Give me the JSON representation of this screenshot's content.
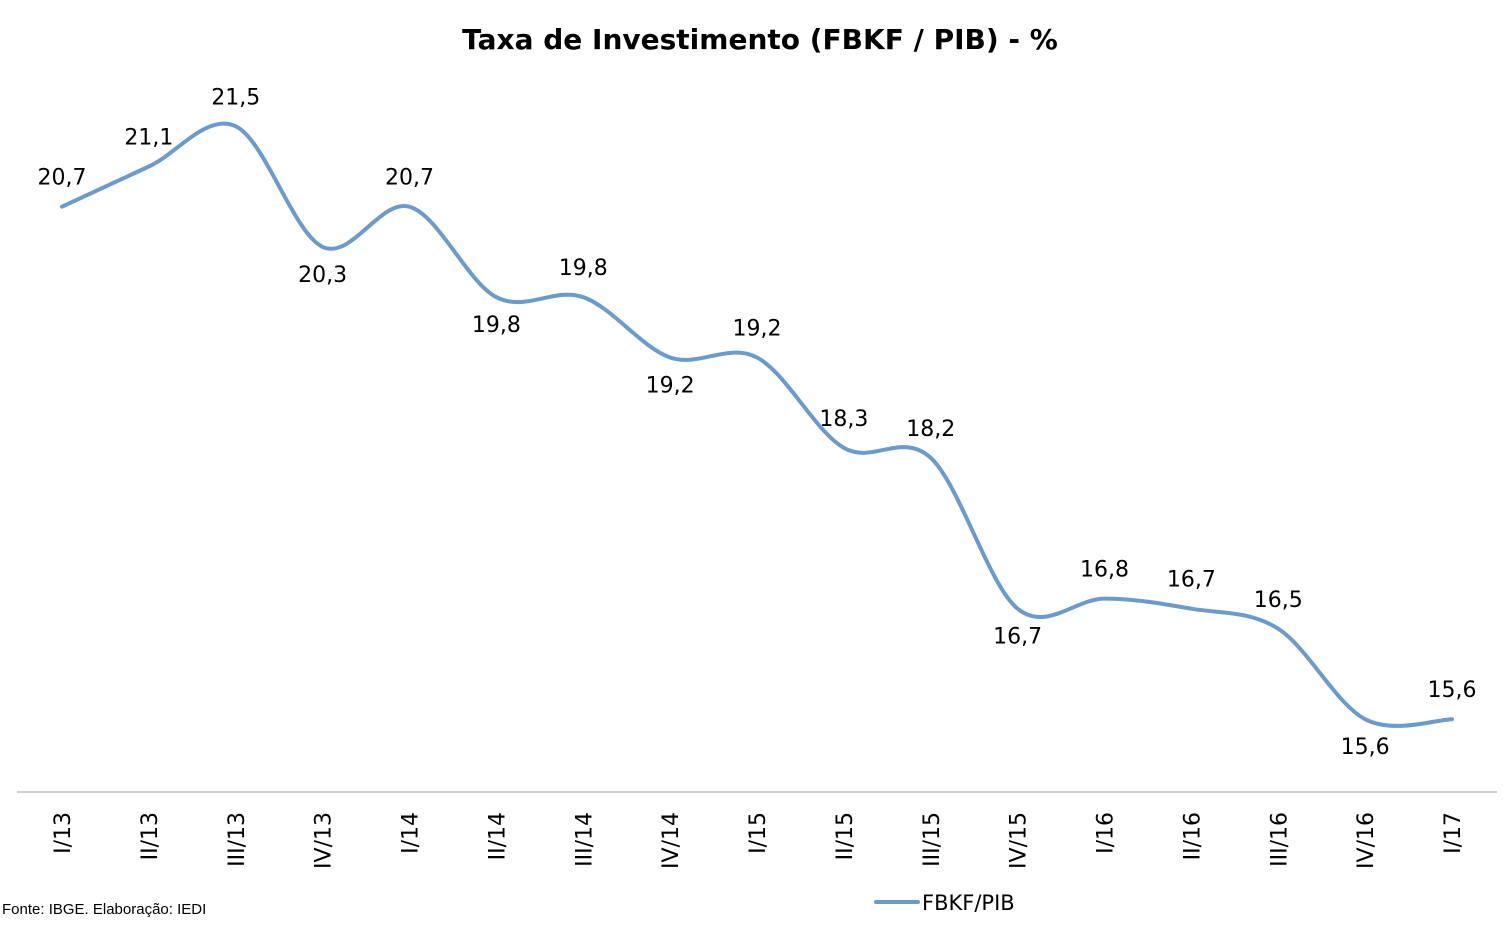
{
  "chart_data": {
    "type": "line",
    "title": "Taxa de Investimento (FBKF / PIB) - %",
    "categories": [
      "I/13",
      "II/13",
      "III/13",
      "IV/13",
      "I/14",
      "II/14",
      "III/14",
      "IV/14",
      "I/15",
      "II/15",
      "III/15",
      "IV/15",
      "I/16",
      "II/16",
      "III/16",
      "IV/16",
      "I/17"
    ],
    "series": [
      {
        "name": "FBKF/PIB",
        "values": [
          20.7,
          21.1,
          21.5,
          20.3,
          20.7,
          19.8,
          19.8,
          19.2,
          19.2,
          18.3,
          18.2,
          16.7,
          16.8,
          16.7,
          16.5,
          15.6,
          15.6
        ],
        "labels": [
          "20,7",
          "21,1",
          "21,5",
          "20,3",
          "20,7",
          "19,8",
          "19,8",
          "19,2",
          "19,2",
          "18,3",
          "18,2",
          "16,7",
          "16,8",
          "16,7",
          "16,5",
          "15,6",
          "15,6"
        ],
        "color": "#6B9BCC"
      }
    ],
    "ylim": [
      14.8,
      22.0
    ],
    "grid": false,
    "legend": "bottom"
  },
  "source_note": "Fonte: IBGE. Elaboração: IEDI"
}
